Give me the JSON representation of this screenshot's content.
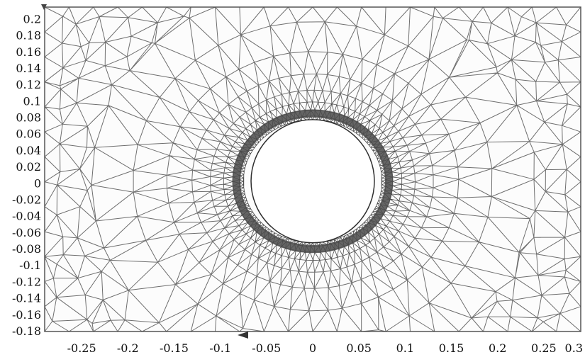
{
  "figure": {
    "description_key": "triangular-finite-element-mesh",
    "colors": {
      "background": "#fcfcfc",
      "mesh_line": "#6e6e6e",
      "refined_ring": "#4a4a4a",
      "hole": "#ffffff",
      "frame": "#555555"
    }
  },
  "chart_data": {
    "type": "scatter",
    "title": "",
    "xlabel": "",
    "ylabel": "",
    "xlim": [
      -0.29,
      0.29
    ],
    "ylim": [
      -0.18,
      0.215
    ],
    "x_ticks": [
      "-0.25",
      "-0.2",
      "-0.15",
      "-0.1",
      "-0.05",
      "0",
      "0.05",
      "0.1",
      "0.15",
      "0.2",
      "0.25",
      "0.3"
    ],
    "x_tick_values": [
      -0.25,
      -0.2,
      -0.15,
      -0.1,
      -0.05,
      0,
      0.05,
      0.1,
      0.15,
      0.2,
      0.25,
      0.3
    ],
    "y_ticks": [
      "0.2",
      "0.18",
      "0.16",
      "0.14",
      "0.12",
      "0.1",
      "0.08",
      "0.06",
      "0.04",
      "0.02",
      "0",
      "-0.02",
      "-0.04",
      "-0.06",
      "-0.08",
      "-0.1",
      "-0.12",
      "-0.14",
      "-0.16",
      "-0.18"
    ],
    "y_tick_values": [
      0.2,
      0.18,
      0.16,
      0.14,
      0.12,
      0.1,
      0.08,
      0.06,
      0.04,
      0.02,
      0,
      -0.02,
      -0.04,
      -0.06,
      -0.08,
      -0.1,
      -0.12,
      -0.14,
      -0.16,
      -0.18
    ],
    "hole": {
      "center": [
        0,
        0.003
      ],
      "radius": 0.075,
      "refined_outer_radius": 0.091
    },
    "grid": false
  }
}
